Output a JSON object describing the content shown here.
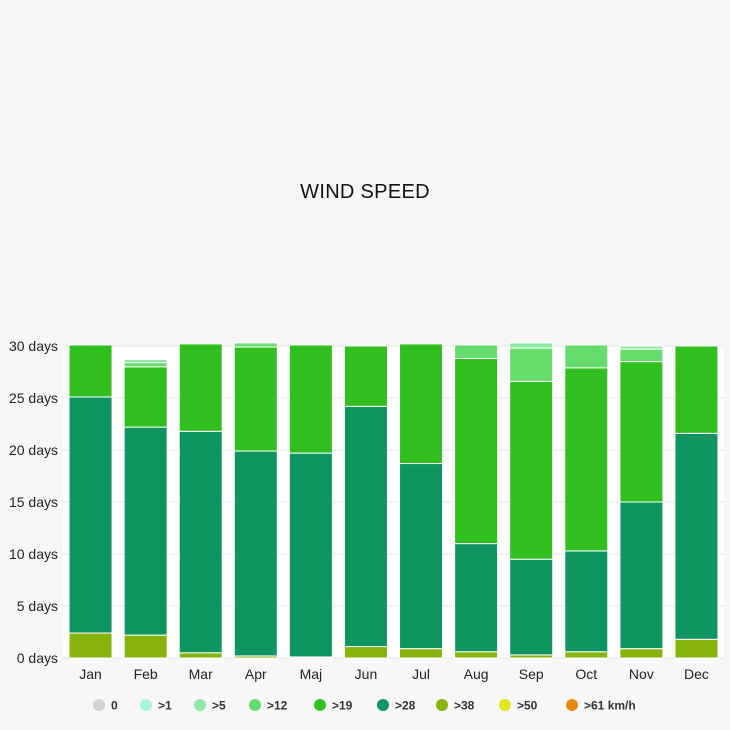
{
  "chart_data": {
    "type": "bar",
    "stacked": true,
    "title": "WIND SPEED",
    "categories": [
      "Jan",
      "Feb",
      "Mar",
      "Apr",
      "Maj",
      "Jun",
      "Jul",
      "Aug",
      "Sep",
      "Oct",
      "Nov",
      "Dec"
    ],
    "y_ticks": [
      "0 days",
      "5 days",
      "10 days",
      "15 days",
      "20 days",
      "25 days",
      "30 days"
    ],
    "ylim": [
      0,
      30
    ],
    "grid": true,
    "legend_position": "bottom",
    "series": [
      {
        "name": "0",
        "color": "#d6d2d2",
        "values": [
          0,
          0,
          0,
          0,
          0,
          0,
          0,
          0,
          0,
          0,
          0,
          0
        ]
      },
      {
        "name": ">1",
        "color": "#a8f5d6",
        "values": [
          0,
          0,
          0,
          0,
          0,
          0,
          0,
          0,
          0,
          0,
          0,
          0
        ]
      },
      {
        "name": ">5",
        "color": "#8ee8a6",
        "values": [
          0,
          0.3,
          0,
          0,
          0,
          0.1,
          0,
          0,
          0.5,
          0,
          0.3,
          0
        ]
      },
      {
        "name": ">12",
        "color": "#66dc6c",
        "values": [
          0,
          0.4,
          0,
          0.4,
          0,
          0,
          0,
          1.3,
          3.2,
          2.2,
          1.2,
          0
        ]
      },
      {
        "name": ">19",
        "color": "#31bf1f",
        "values": [
          5.0,
          5.8,
          8.4,
          10.0,
          10.4,
          5.8,
          11.5,
          17.8,
          17.1,
          17.6,
          13.5,
          8.4
        ]
      },
      {
        "name": ">28",
        "color": "#0f9560",
        "values": [
          22.7,
          20.0,
          21.3,
          19.7,
          19.6,
          23.1,
          17.8,
          10.4,
          9.2,
          9.7,
          14.1,
          19.8
        ]
      },
      {
        "name": ">38",
        "color": "#86b40c",
        "values": [
          2.4,
          2.2,
          0.5,
          0.2,
          0.1,
          1.1,
          0.9,
          0.6,
          0.3,
          0.6,
          0.9,
          1.8
        ]
      },
      {
        "name": ">50",
        "color": "#e6e51c",
        "values": [
          0,
          0,
          0,
          0,
          0,
          0,
          0,
          0,
          0,
          0,
          0,
          0
        ]
      },
      {
        "name": ">61 km/h",
        "color": "#e8870e",
        "values": [
          0,
          0,
          0,
          0,
          0,
          0,
          0,
          0,
          0,
          0,
          0,
          0
        ]
      }
    ]
  }
}
